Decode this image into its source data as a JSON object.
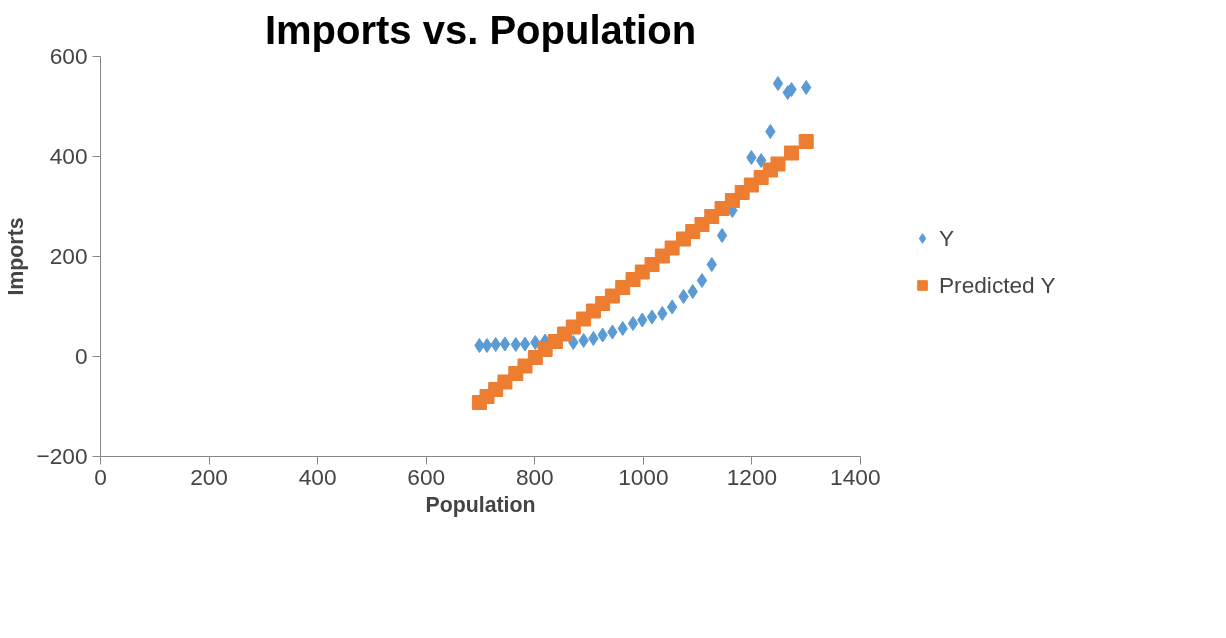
{
  "chart_data": {
    "type": "scatter",
    "title": "Imports vs. Population",
    "xlabel": "Population",
    "ylabel": "Imports",
    "x": [
      698,
      712,
      728,
      745,
      765,
      782,
      801,
      819,
      838,
      855,
      871,
      890,
      908,
      925,
      943,
      962,
      981,
      998,
      1016,
      1035,
      1053,
      1074,
      1091,
      1108,
      1126,
      1145,
      1164,
      1182,
      1199,
      1217,
      1234,
      1248,
      1266,
      1273,
      1300
    ],
    "series": [
      {
        "name": "Y",
        "color": "#5b9bd5",
        "marker": "diamond",
        "values": [
          22,
          22,
          24,
          25,
          24,
          25,
          28,
          31,
          null,
          null,
          28,
          32,
          36,
          43,
          49,
          56,
          66,
          73,
          79,
          86,
          99,
          120,
          130,
          152,
          184,
          242,
          292,
          null,
          398,
          392,
          450,
          546,
          528,
          534,
          538
        ]
      },
      {
        "name": "Predicted Y",
        "color": "#ed7d31",
        "marker": "square",
        "values": [
          -92,
          -80,
          -66,
          -51,
          -34,
          -19,
          -2,
          14,
          30,
          45,
          59,
          75,
          91,
          106,
          121,
          138,
          154,
          169,
          184,
          201,
          217,
          235,
          250,
          264,
          280,
          296,
          312,
          328,
          343,
          358,
          373,
          385,
          null,
          407,
          430
        ]
      }
    ],
    "xlim": [
      0,
      1400
    ],
    "xticks": [
      0,
      200,
      400,
      600,
      800,
      1000,
      1200,
      1400
    ],
    "ylim": [
      -200,
      600
    ],
    "yticks": [
      -200,
      0,
      200,
      400,
      600
    ],
    "grid": false,
    "legend": "right"
  }
}
